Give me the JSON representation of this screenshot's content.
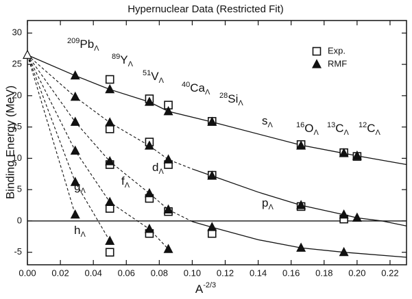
{
  "chart_data": {
    "type": "scatter",
    "title": "Hypernuclear Data (Restricted Fit)",
    "ylabel": "Binding Energy (MeV)",
    "xlabel": {
      "text": "A",
      "sup": "-2/3"
    },
    "xlim": [
      0,
      0.23
    ],
    "ylim": [
      -7,
      32
    ],
    "xticks": [
      {
        "value": 0,
        "label": "0.00"
      },
      {
        "value": 0.02,
        "label": "0.02"
      },
      {
        "value": 0.04,
        "label": "0.04"
      },
      {
        "value": 0.06,
        "label": "0.06"
      },
      {
        "value": 0.08,
        "label": "0.08"
      },
      {
        "value": 0.1,
        "label": "0.10"
      },
      {
        "value": 0.12,
        "label": "0.12"
      },
      {
        "value": 0.14,
        "label": "0.14"
      },
      {
        "value": 0.16,
        "label": "0.16"
      },
      {
        "value": 0.18,
        "label": "0.18"
      },
      {
        "value": 0.2,
        "label": "0.20"
      },
      {
        "value": 0.22,
        "label": "0.22"
      }
    ],
    "yticks": [
      -5,
      0,
      5,
      10,
      15,
      20,
      25,
      30
    ],
    "zero_line": true,
    "series": [
      {
        "name": "Exp.",
        "marker": "square",
        "filled": false,
        "color": "#111111",
        "x": [
          0.05,
          0.05,
          0.05,
          0.05,
          0.05,
          0.074,
          0.074,
          0.074,
          0.074,
          0.0855,
          0.0855,
          0.0855,
          0.112,
          0.112,
          0.112,
          0.166,
          0.166,
          0.192,
          0.192,
          0.2
        ],
        "values": [
          22.6,
          14.7,
          9.0,
          2.0,
          -5.0,
          19.5,
          12.6,
          3.6,
          -2.0,
          18.5,
          9.0,
          1.5,
          15.9,
          7.3,
          -2.0,
          12.2,
          2.3,
          10.9,
          0.3,
          10.3
        ]
      },
      {
        "name": "RMF",
        "marker": "triangle",
        "filled": true,
        "color": "#111111",
        "x": [
          0.029,
          0.029,
          0.029,
          0.029,
          0.029,
          0.029,
          0.05,
          0.05,
          0.05,
          0.05,
          0.05,
          0.074,
          0.074,
          0.074,
          0.074,
          0.0855,
          0.0855,
          0.0855,
          0.0855,
          0.112,
          0.112,
          0.112,
          0.166,
          0.166,
          0.166,
          0.192,
          0.192,
          0.192,
          0.2,
          0.2
        ],
        "values": [
          23.2,
          19.8,
          15.8,
          11.2,
          6.2,
          1.0,
          21.0,
          15.7,
          9.5,
          3.0,
          -3.2,
          19.0,
          12.0,
          4.4,
          -1.3,
          17.5,
          9.8,
          1.8,
          -4.5,
          15.8,
          7.2,
          -1.0,
          12.0,
          2.5,
          -4.3,
          10.8,
          1.0,
          -5.0,
          10.4,
          0.5
        ]
      },
      {
        "marker": "triangle",
        "filled": false,
        "color": "#111111",
        "x": [
          0
        ],
        "values": [
          26.5
        ]
      }
    ],
    "curves": [
      {
        "style": "solid",
        "x": [
          0,
          0.029,
          0.05,
          0.074,
          0.0855,
          0.112,
          0.166,
          0.192,
          0.2,
          0.23
        ],
        "values": [
          26.5,
          23.2,
          21.0,
          19.0,
          17.5,
          15.8,
          12.1,
          10.8,
          10.4,
          9.0
        ]
      },
      {
        "style": "dashed",
        "x": [
          0,
          0.029,
          0.05,
          0.074,
          0.0855,
          0.1
        ],
        "values": [
          26.5,
          19.8,
          15.7,
          12.0,
          9.8,
          8.3
        ]
      },
      {
        "style": "solid",
        "x": [
          0.1,
          0.112,
          0.14,
          0.166,
          0.192,
          0.2,
          0.215,
          0.23
        ],
        "values": [
          8.3,
          7.2,
          4.6,
          2.5,
          1.0,
          0.5,
          0,
          -0.8
        ]
      },
      {
        "style": "dashed",
        "x": [
          0,
          0.029,
          0.05,
          0.074,
          0.0855,
          0.1
        ],
        "values": [
          26.5,
          15.8,
          9.5,
          4.4,
          1.8,
          -0.1
        ]
      },
      {
        "style": "solid",
        "x": [
          0.1,
          0.112,
          0.14,
          0.166,
          0.192,
          0.23
        ],
        "values": [
          -0.1,
          -1.0,
          -3.0,
          -4.3,
          -5.0,
          -5.8
        ]
      },
      {
        "style": "dashed",
        "x": [
          0,
          0.029,
          0.05,
          0.074,
          0.0855
        ],
        "values": [
          26.5,
          11.2,
          3.0,
          -1.3,
          -4.5
        ]
      },
      {
        "style": "dashed",
        "x": [
          0,
          0.029,
          0.05
        ],
        "values": [
          26.5,
          6.2,
          -3.2
        ]
      },
      {
        "style": "dashed",
        "x": [
          0,
          0.029
        ],
        "values": [
          26.5,
          1.0
        ]
      }
    ],
    "annotations": [
      {
        "sup": "209",
        "text": "Pb",
        "sub": "Λ"
      },
      {
        "sup": "89",
        "text": "Y",
        "sub": "Λ"
      },
      {
        "sup": "51",
        "text": "V",
        "sub": "Λ"
      },
      {
        "sup": "40",
        "text": "Ca",
        "sub": "Λ"
      },
      {
        "sup": "28",
        "text": "Si",
        "sub": "Λ"
      },
      {
        "sup": "16",
        "text": "O",
        "sub": "Λ"
      },
      {
        "sup": "13",
        "text": "C",
        "sub": "Λ"
      },
      {
        "sup": "12",
        "text": "C",
        "sub": "Λ"
      },
      {
        "text": "s",
        "sub": "Λ"
      },
      {
        "text": "p",
        "sub": "Λ"
      },
      {
        "text": "d",
        "sub": "Λ"
      },
      {
        "text": "f",
        "sub": "Λ"
      },
      {
        "text": "g",
        "sub": "Λ"
      },
      {
        "text": "h",
        "sub": "Λ"
      }
    ]
  }
}
